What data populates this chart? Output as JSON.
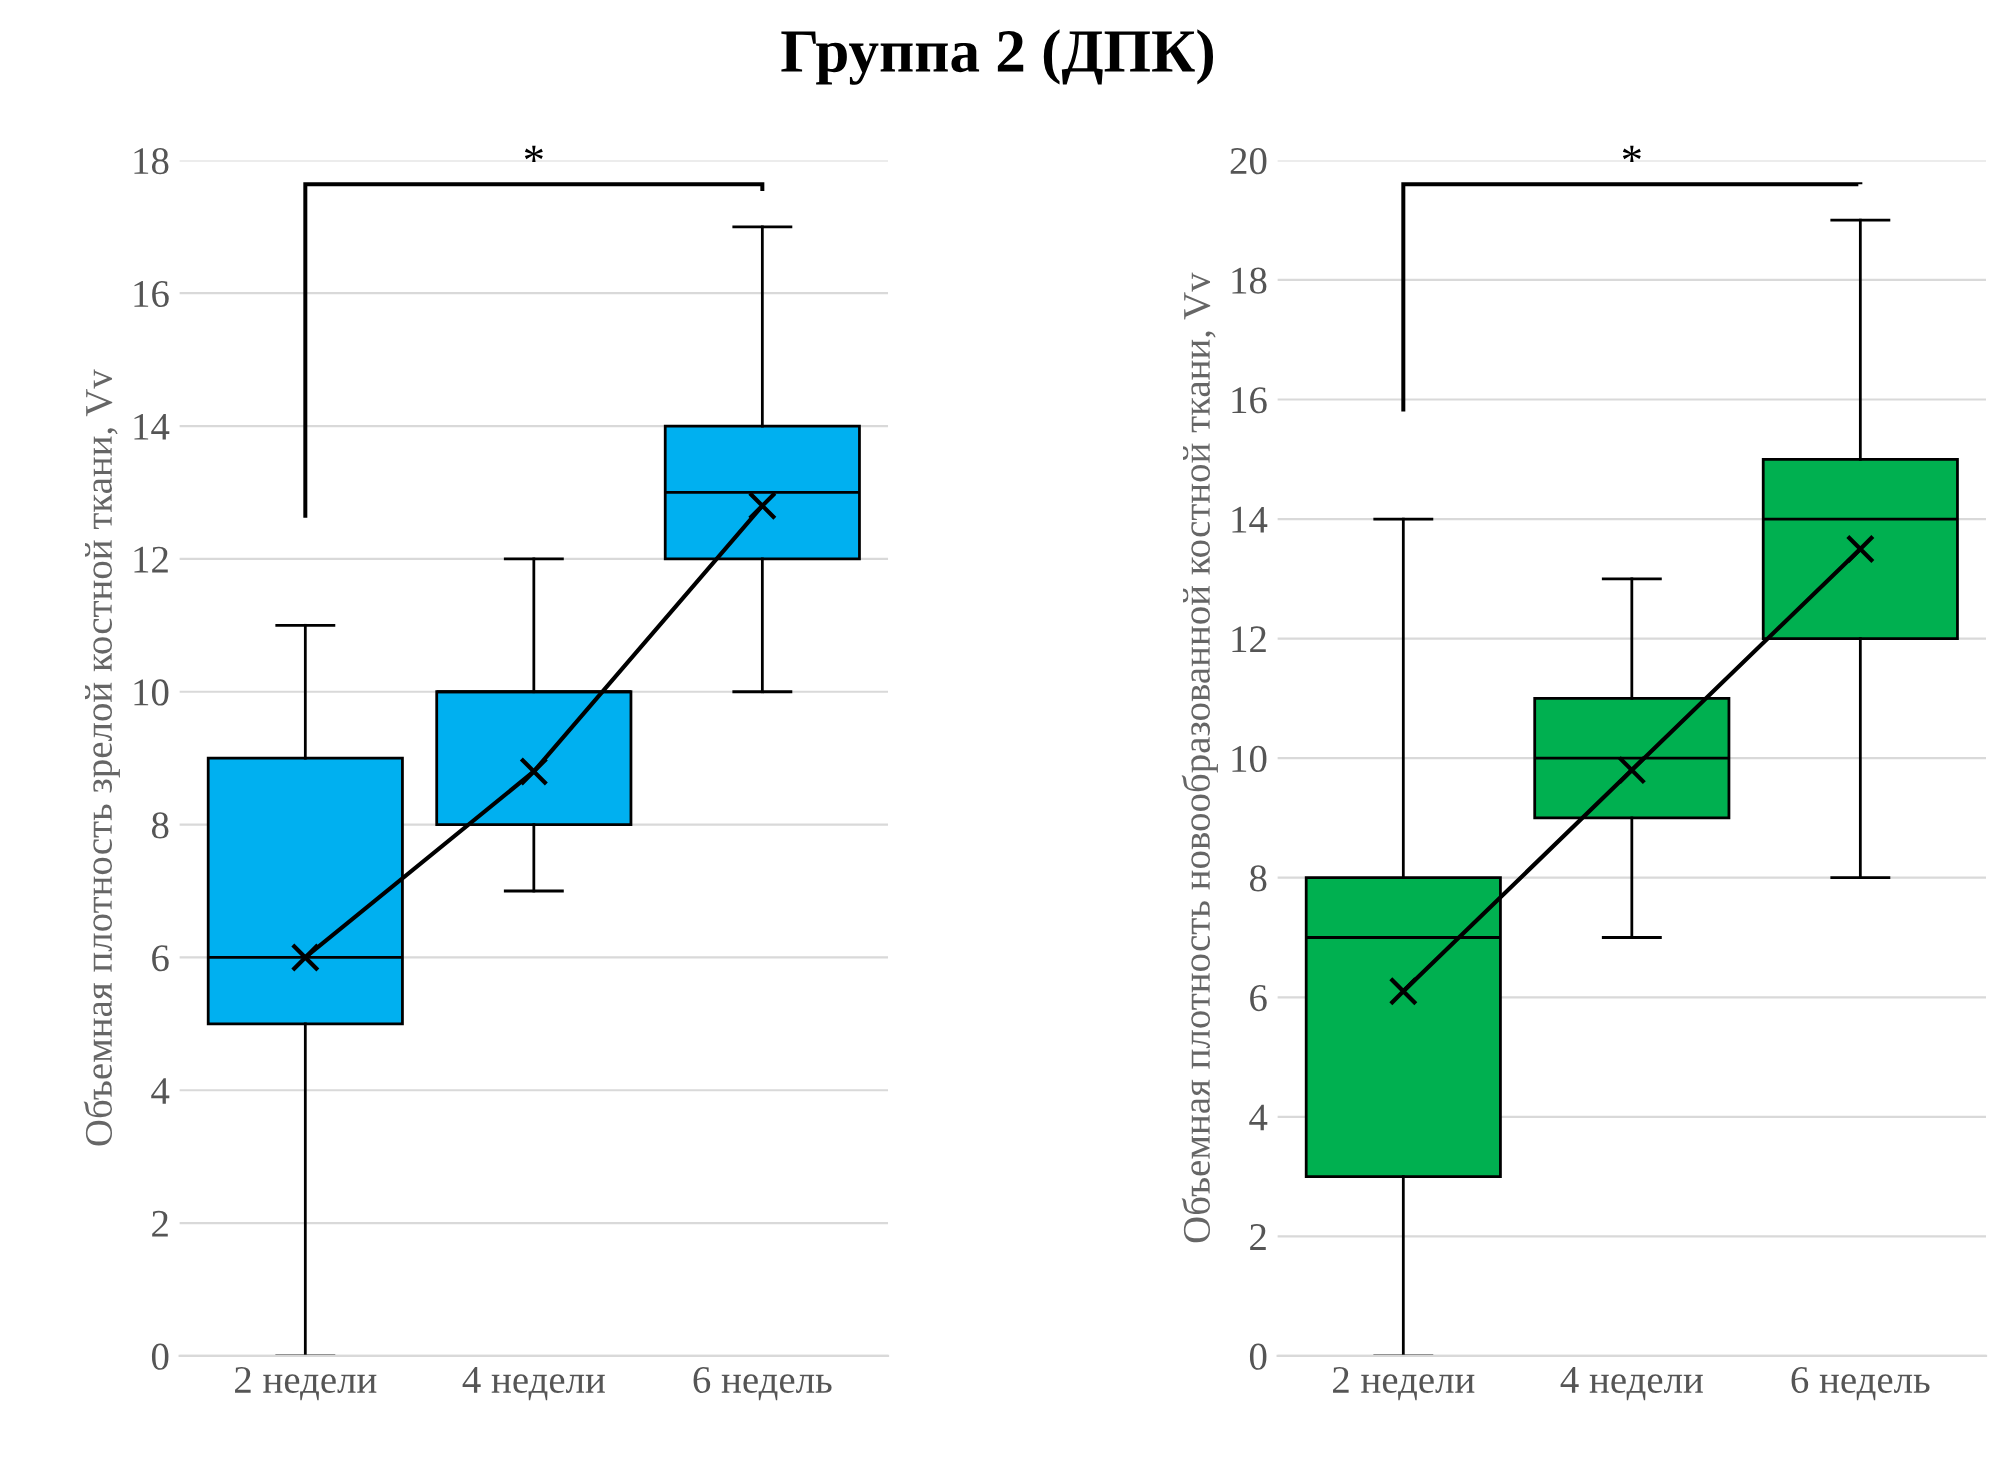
{
  "chart_data": [
    {
      "type": "box",
      "title": "Группа 2 (ДПК)",
      "ylabel": "Объемная плотность зрелой костной ткани, Vv",
      "categories": [
        "2 недели",
        "4 недели",
        "6 недель"
      ],
      "color": "#00b0f0",
      "ylim": [
        0,
        18
      ],
      "yticks": [
        0,
        2,
        4,
        6,
        8,
        10,
        12,
        14,
        16,
        18
      ],
      "grid": "y",
      "annotations": [
        "*"
      ],
      "boxes": [
        {
          "low": 0,
          "q1": 5,
          "median": 6,
          "q3": 9,
          "high": 11
        },
        {
          "low": 7,
          "q1": 8,
          "median": 10,
          "q3": 10,
          "high": 12
        },
        {
          "low": 10,
          "q1": 12,
          "median": 13,
          "q3": 14,
          "high": 17
        }
      ],
      "series": [
        {
          "type": "line",
          "color": "#000000",
          "marker": "cross",
          "values": [
            6,
            8.8,
            12.8
          ]
        }
      ]
    },
    {
      "type": "box",
      "ylabel": "Объемная плотность новообразованной костной ткани, Vv",
      "categories": [
        "2 недели",
        "4 недели",
        "6 недель"
      ],
      "color": "#00b050",
      "ylim": [
        0,
        20
      ],
      "yticks": [
        0,
        2,
        4,
        6,
        8,
        10,
        12,
        14,
        16,
        18,
        20
      ],
      "grid": "y",
      "annotations": [
        "*"
      ],
      "boxes": [
        {
          "low": 0,
          "q1": 3,
          "median": 7,
          "q3": 8,
          "high": 14
        },
        {
          "low": 7,
          "q1": 9,
          "median": 10,
          "q3": 11,
          "high": 13
        },
        {
          "low": 8,
          "q1": 12,
          "median": 14,
          "q3": 15,
          "high": 19
        }
      ],
      "series": [
        {
          "type": "line",
          "color": "#000000",
          "marker": "cross",
          "values": [
            6.1,
            9.8,
            13.5
          ]
        }
      ]
    }
  ]
}
